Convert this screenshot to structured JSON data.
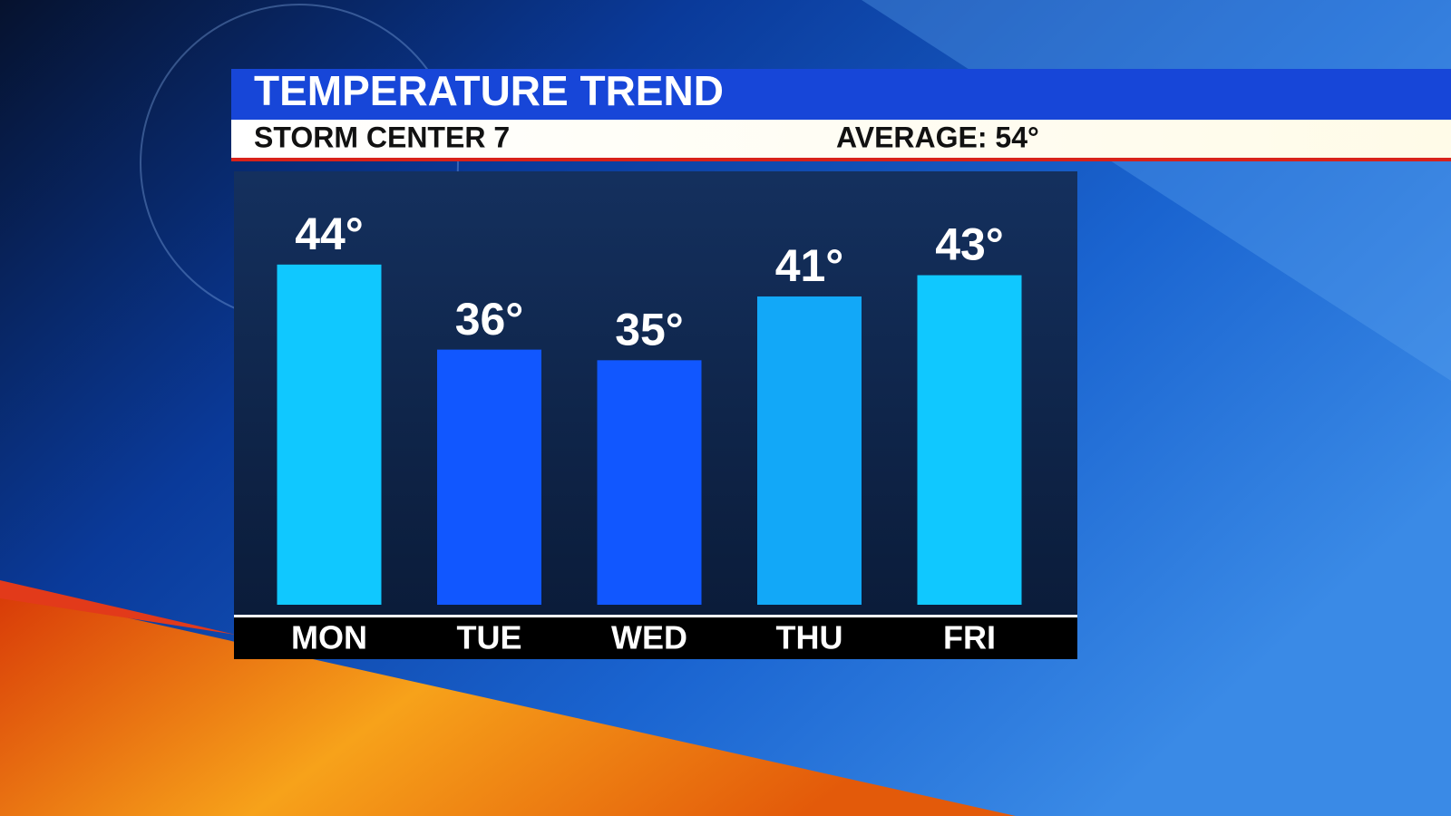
{
  "chart_data": {
    "type": "bar",
    "title": "TEMPERATURE TREND",
    "subtitle": "STORM CENTER 7",
    "annotation": "AVERAGE: 54°",
    "categories": [
      "MON",
      "TUE",
      "WED",
      "THU",
      "FRI"
    ],
    "values": [
      44,
      36,
      35,
      41,
      43
    ],
    "value_labels": [
      "44°",
      "36°",
      "35°",
      "41°",
      "43°"
    ],
    "colors": [
      "#10c8ff",
      "#1157ff",
      "#1157ff",
      "#12a8f8",
      "#10c8ff"
    ],
    "ylim": [
      12,
      52
    ]
  }
}
